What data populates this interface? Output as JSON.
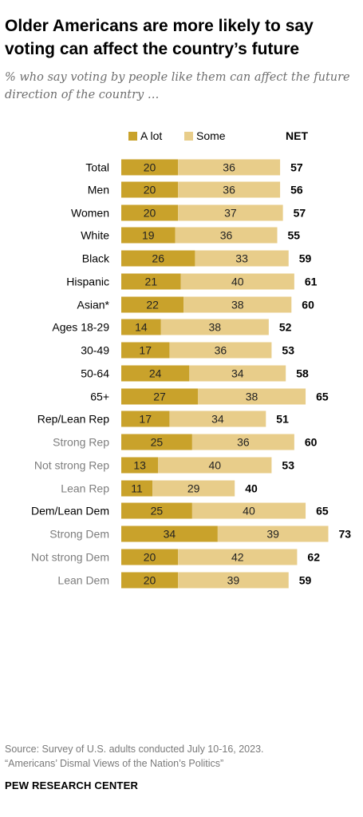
{
  "title": "Older Americans are more likely to say voting can affect the country’s future",
  "subtitle": "% who say voting by people like them can affect the future direction of the country …",
  "source": "Source: Survey of U.S. adults conducted July 10-16, 2023.",
  "source_note": "“Americans’ Dismal Views of the Nation’s Politics”",
  "brand": "PEW RESEARCH CENTER",
  "colors": {
    "a_lot": "#c9a22b",
    "some": "#e8cd8a",
    "label_dark": "#000000",
    "label_muted": "#7d7d7d"
  },
  "chart_data": {
    "type": "bar",
    "orientation": "horizontal",
    "stacked": true,
    "legend_position": "top",
    "net_label": "NET",
    "series": [
      {
        "name": "A lot",
        "values": [
          20,
          20,
          20,
          19,
          26,
          21,
          22,
          14,
          17,
          24,
          27,
          17,
          25,
          13,
          11,
          25,
          34,
          20,
          20
        ]
      },
      {
        "name": "Some",
        "values": [
          36,
          36,
          37,
          36,
          33,
          40,
          38,
          38,
          36,
          34,
          38,
          34,
          36,
          40,
          29,
          40,
          39,
          42,
          39
        ]
      }
    ],
    "categories": [
      "Total",
      "Men",
      "Women",
      "White",
      "Black",
      "Hispanic",
      "Asian*",
      "Ages 18-29",
      "30-49",
      "50-64",
      "65+",
      "Rep/Lean Rep",
      "Strong Rep",
      "Not strong Rep",
      "Lean Rep",
      "Dem/Lean Dem",
      "Strong Dem",
      "Not strong Dem",
      "Lean Dem"
    ],
    "net": [
      57,
      56,
      57,
      55,
      59,
      61,
      60,
      52,
      53,
      58,
      65,
      51,
      60,
      53,
      40,
      65,
      73,
      62,
      59
    ],
    "subgroup": [
      false,
      false,
      false,
      false,
      false,
      false,
      false,
      false,
      false,
      false,
      false,
      false,
      true,
      true,
      true,
      false,
      true,
      true,
      true
    ],
    "groups": [
      [
        0
      ],
      [
        1,
        2
      ],
      [
        3,
        4,
        5,
        6
      ],
      [
        7,
        8,
        9,
        10
      ],
      [
        11,
        12,
        13,
        14
      ],
      [
        15,
        16,
        17,
        18
      ]
    ],
    "xlim": [
      0,
      100
    ]
  }
}
